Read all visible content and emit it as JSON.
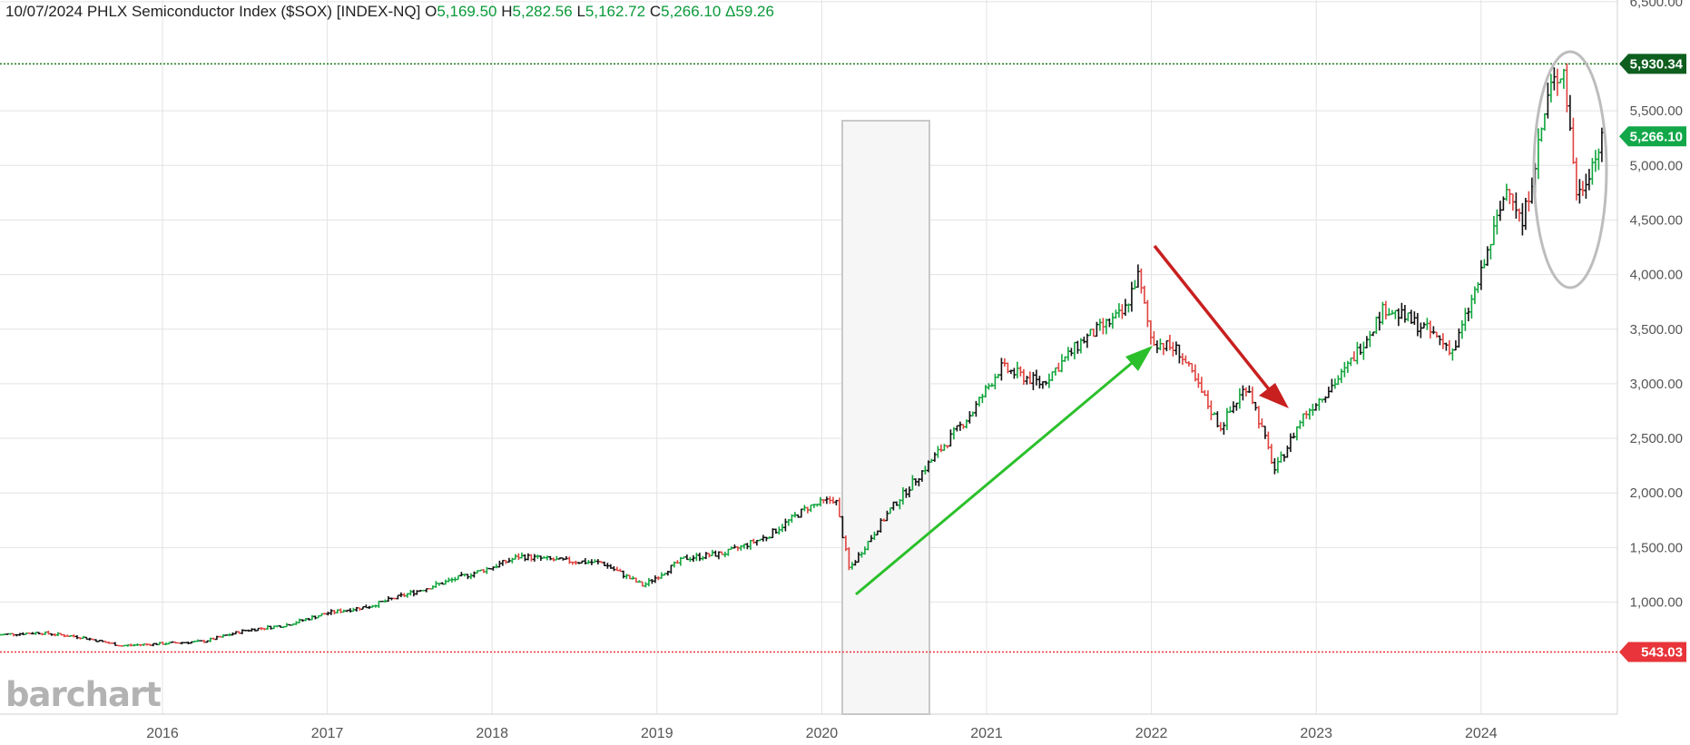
{
  "header": {
    "date": "10/07/2024",
    "instrument": "PHLX Semiconductor Index ($SOX) [INDEX-NQ]",
    "open_label": "O",
    "open": "5,169.50",
    "high_label": "H",
    "high": "5,282.56",
    "low_label": "L",
    "low": "5,162.72",
    "close_label": "C",
    "close": "5,266.10",
    "change_label": "Δ",
    "change": "59.26"
  },
  "logo_text": "barchart",
  "colors": {
    "up": "#11a63c",
    "down": "#e0433f",
    "neutral": "#111111",
    "high_line": "#1a7a1a",
    "low_line": "#e8343a",
    "last_price_tag": "#12a84a",
    "high_tag": "#0e5e1e",
    "low_tag": "#e8343a",
    "up_arrow": "#22bb22",
    "down_arrow": "#c21a1a"
  },
  "chart_data": {
    "type": "ohlc",
    "title": "PHLX Semiconductor Index ($SOX) [INDEX-NQ]",
    "x_ticks": [
      "2016",
      "2017",
      "2018",
      "2019",
      "2020",
      "2021",
      "2022",
      "2023",
      "2024"
    ],
    "y_ticks": [
      "1,000.00",
      "1,500.00",
      "2,000.00",
      "2,500.00",
      "3,000.00",
      "3,500.00",
      "4,000.00",
      "4,500.00",
      "5,000.00",
      "5,500.00",
      "6,500.00"
    ],
    "y_tick_values": [
      1000,
      1500,
      2000,
      2500,
      3000,
      3500,
      4000,
      4500,
      5000,
      5500,
      6500
    ],
    "ylim": [
      0,
      6500
    ],
    "xlim": [
      "2015-01",
      "2024-10"
    ],
    "grid": true,
    "price_levels": {
      "period_high": {
        "value": 5930.34,
        "label": "5,930.34"
      },
      "last_price": {
        "value": 5266.1,
        "label": "5,266.10"
      },
      "period_low": {
        "value": 543.03,
        "label": "543.03"
      }
    },
    "series": [
      {
        "values": [
          [
            "2015-01",
            700
          ],
          [
            "2015-04",
            720
          ],
          [
            "2015-07",
            680
          ],
          [
            "2015-10",
            600
          ],
          [
            "2016-01",
            620
          ],
          [
            "2016-04",
            640
          ],
          [
            "2016-07",
            740
          ],
          [
            "2016-10",
            790
          ],
          [
            "2017-01",
            900
          ],
          [
            "2017-04",
            960
          ],
          [
            "2017-07",
            1080
          ],
          [
            "2017-10",
            1200
          ],
          [
            "2018-01",
            1320
          ],
          [
            "2018-03",
            1420
          ],
          [
            "2018-06",
            1380
          ],
          [
            "2018-09",
            1360
          ],
          [
            "2018-12",
            1150
          ],
          [
            "2019-03",
            1400
          ],
          [
            "2019-06",
            1450
          ],
          [
            "2019-09",
            1600
          ],
          [
            "2019-12",
            1870
          ],
          [
            "2020-02",
            1950
          ],
          [
            "2020-03",
            1300
          ],
          [
            "2020-06",
            1850
          ],
          [
            "2020-09",
            2300
          ],
          [
            "2020-12",
            2750
          ],
          [
            "2021-02",
            3150
          ],
          [
            "2021-05",
            3000
          ],
          [
            "2021-08",
            3400
          ],
          [
            "2021-11",
            3650
          ],
          [
            "2021-12",
            4000
          ],
          [
            "2022-01",
            3400
          ],
          [
            "2022-03",
            3300
          ],
          [
            "2022-06",
            2600
          ],
          [
            "2022-08",
            3000
          ],
          [
            "2022-10",
            2200
          ],
          [
            "2022-12",
            2700
          ],
          [
            "2023-03",
            3100
          ],
          [
            "2023-06",
            3700
          ],
          [
            "2023-09",
            3500
          ],
          [
            "2023-11",
            3300
          ],
          [
            "2024-01",
            4000
          ],
          [
            "2024-03",
            4850
          ],
          [
            "2024-04",
            4450
          ],
          [
            "2024-06",
            5700
          ],
          [
            "2024-07",
            5900
          ],
          [
            "2024-08",
            4700
          ],
          [
            "2024-09",
            5000
          ],
          [
            "2024-10",
            5266
          ]
        ]
      }
    ]
  }
}
